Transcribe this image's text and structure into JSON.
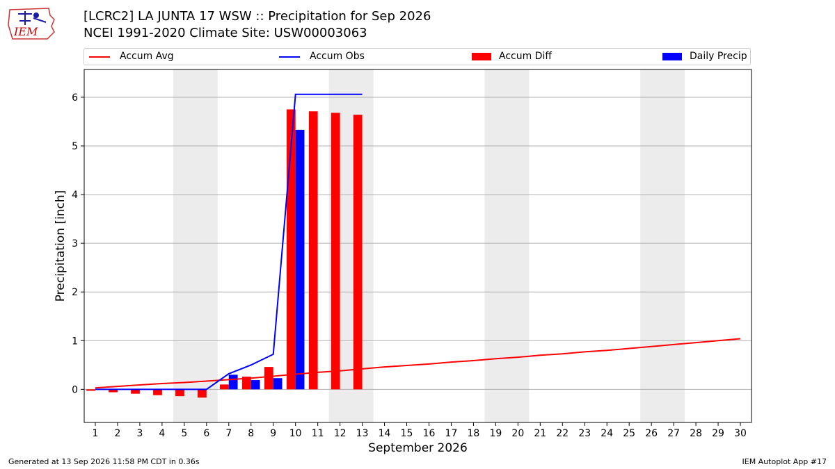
{
  "header": {
    "title_line1": "[LCRC2] LA JUNTA 17 WSW :: Precipitation for Sep 2026",
    "title_line2": "NCEI 1991-2020 Climate Site: USW00003063",
    "logo_text": "IEM"
  },
  "footer": {
    "generated": "Generated at 13 Sep 2026 11:58 PM CDT in 0.36s",
    "app": "IEM Autoplot App #17"
  },
  "legend": {
    "position": "top, above plot",
    "items": [
      {
        "label": "Accum Avg",
        "kind": "line",
        "color": "#ff0000"
      },
      {
        "label": "Accum Obs",
        "kind": "line",
        "color": "#0000ff"
      },
      {
        "label": "Accum Diff",
        "kind": "box",
        "color": "#ff0000"
      },
      {
        "label": "Daily Precip",
        "kind": "box",
        "color": "#0000ff"
      }
    ]
  },
  "chart_data": {
    "type": "bar",
    "xlabel": "September 2026",
    "ylabel": "Precipitation [inch]",
    "xlim": [
      0.5,
      30.5
    ],
    "ylim": [
      -0.68,
      6.57
    ],
    "yticks": [
      0,
      1,
      2,
      3,
      4,
      5,
      6
    ],
    "grid": "horizontal",
    "weekend_shading": [
      [
        4.5,
        6.5
      ],
      [
        11.5,
        13.5
      ],
      [
        18.5,
        20.5
      ],
      [
        25.5,
        27.5
      ]
    ],
    "days": [
      1,
      2,
      3,
      4,
      5,
      6,
      7,
      8,
      9,
      10,
      11,
      12,
      13,
      14,
      15,
      16,
      17,
      18,
      19,
      20,
      21,
      22,
      23,
      24,
      25,
      26,
      27,
      28,
      29,
      30
    ],
    "series": [
      {
        "name": "Accum Avg",
        "kind": "line",
        "color": "#ff0000",
        "values": [
          0.03,
          0.06,
          0.09,
          0.12,
          0.14,
          0.17,
          0.2,
          0.23,
          0.27,
          0.31,
          0.35,
          0.38,
          0.42,
          0.46,
          0.49,
          0.52,
          0.56,
          0.59,
          0.63,
          0.66,
          0.7,
          0.73,
          0.77,
          0.8,
          0.84,
          0.88,
          0.92,
          0.96,
          1.0,
          1.04
        ]
      },
      {
        "name": "Accum Obs",
        "kind": "line",
        "color": "#0000ff",
        "values": [
          0.0,
          0.0,
          0.0,
          0.0,
          0.0,
          0.0,
          0.32,
          0.5,
          0.72,
          6.06,
          6.06,
          6.06,
          6.06
        ]
      },
      {
        "name": "Accum Diff",
        "kind": "bar",
        "color": "#ff0000",
        "values": [
          -0.03,
          -0.06,
          -0.09,
          -0.12,
          -0.14,
          -0.17,
          0.1,
          0.26,
          0.46,
          5.75,
          5.71,
          5.68,
          5.64
        ]
      },
      {
        "name": "Daily Precip",
        "kind": "bar",
        "color": "#0000ff",
        "values": [
          0.0,
          0.0,
          0.0,
          0.0,
          0.0,
          0.0,
          0.3,
          0.19,
          0.23,
          5.33,
          0.0,
          0.0,
          0.0
        ]
      }
    ]
  }
}
